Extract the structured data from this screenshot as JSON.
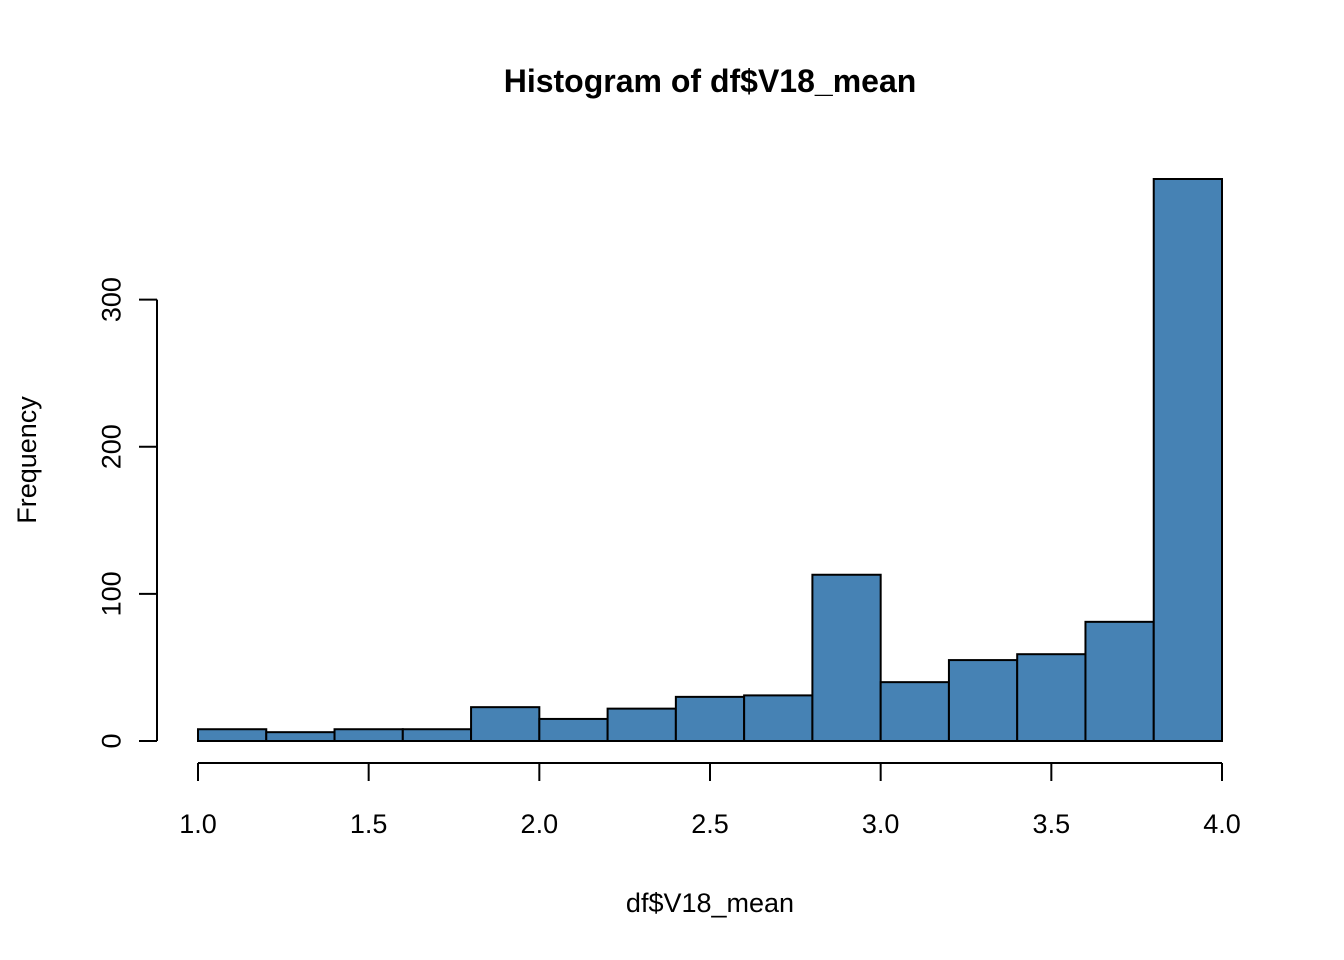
{
  "chart_data": {
    "type": "bar",
    "title": "Histogram of df$V18_mean",
    "xlabel": "df$V18_mean",
    "ylabel": "Frequency",
    "bins": [
      {
        "start": 1.0,
        "end": 1.2,
        "count": 8
      },
      {
        "start": 1.2,
        "end": 1.4,
        "count": 6
      },
      {
        "start": 1.4,
        "end": 1.6,
        "count": 8
      },
      {
        "start": 1.6,
        "end": 1.8,
        "count": 8
      },
      {
        "start": 1.8,
        "end": 2.0,
        "count": 23
      },
      {
        "start": 2.0,
        "end": 2.2,
        "count": 15
      },
      {
        "start": 2.2,
        "end": 2.4,
        "count": 22
      },
      {
        "start": 2.4,
        "end": 2.6,
        "count": 30
      },
      {
        "start": 2.6,
        "end": 2.8,
        "count": 31
      },
      {
        "start": 2.8,
        "end": 3.0,
        "count": 113
      },
      {
        "start": 3.0,
        "end": 3.2,
        "count": 40
      },
      {
        "start": 3.2,
        "end": 3.4,
        "count": 55
      },
      {
        "start": 3.4,
        "end": 3.6,
        "count": 59
      },
      {
        "start": 3.6,
        "end": 3.8,
        "count": 81
      },
      {
        "start": 3.8,
        "end": 4.0,
        "count": 382
      }
    ],
    "xlim": [
      1.0,
      4.0
    ],
    "ylim": [
      0,
      382
    ],
    "x_ticks": [
      {
        "value": 1.0,
        "label": "1.0"
      },
      {
        "value": 1.5,
        "label": "1.5"
      },
      {
        "value": 2.0,
        "label": "2.0"
      },
      {
        "value": 2.5,
        "label": "2.5"
      },
      {
        "value": 3.0,
        "label": "3.0"
      },
      {
        "value": 3.5,
        "label": "3.5"
      },
      {
        "value": 4.0,
        "label": "4.0"
      }
    ],
    "y_ticks": [
      {
        "value": 0,
        "label": "0"
      },
      {
        "value": 100,
        "label": "100"
      },
      {
        "value": 200,
        "label": "200"
      },
      {
        "value": 300,
        "label": "300"
      }
    ],
    "bar_color": "#4682B4",
    "grid": false
  }
}
